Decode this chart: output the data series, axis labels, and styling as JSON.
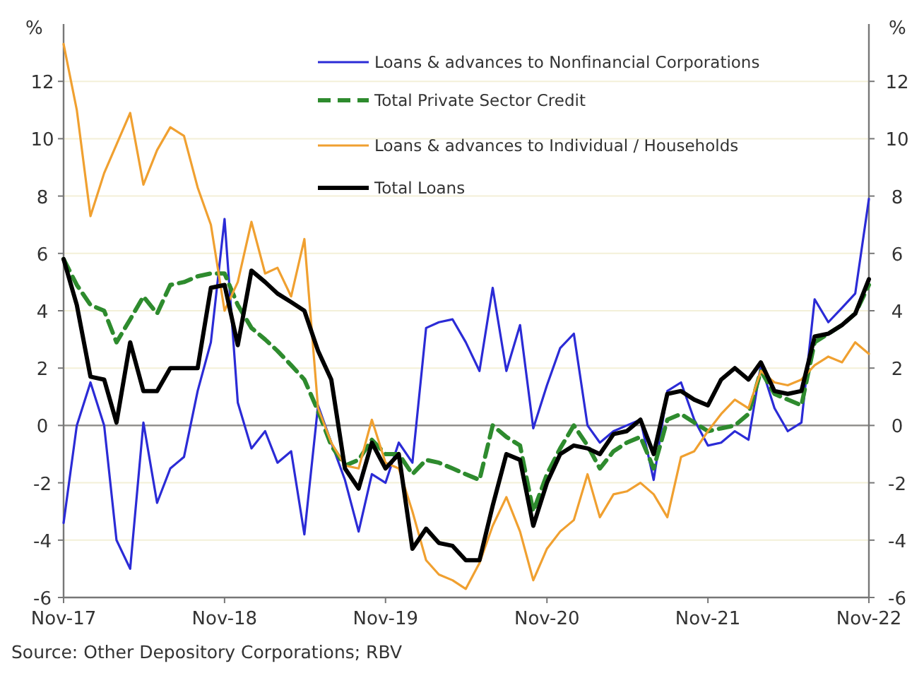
{
  "chart_data": {
    "type": "line",
    "ylabel": "%",
    "y2label": "%",
    "x": [
      "2017-11",
      "2017-12",
      "2018-01",
      "2018-02",
      "2018-03",
      "2018-04",
      "2018-05",
      "2018-06",
      "2018-07",
      "2018-08",
      "2018-09",
      "2018-10",
      "2018-11",
      "2018-12",
      "2019-01",
      "2019-02",
      "2019-03",
      "2019-04",
      "2019-05",
      "2019-06",
      "2019-07",
      "2019-08",
      "2019-09",
      "2019-10",
      "2019-11",
      "2019-12",
      "2020-01",
      "2020-02",
      "2020-03",
      "2020-04",
      "2020-05",
      "2020-06",
      "2020-07",
      "2020-08",
      "2020-09",
      "2020-10",
      "2020-11",
      "2020-12",
      "2021-01",
      "2021-02",
      "2021-03",
      "2021-04",
      "2021-05",
      "2021-06",
      "2021-07",
      "2021-08",
      "2021-09",
      "2021-10",
      "2021-11",
      "2021-12",
      "2022-01",
      "2022-02",
      "2022-03",
      "2022-04",
      "2022-05",
      "2022-06",
      "2022-07",
      "2022-08",
      "2022-09",
      "2022-10",
      "2022-11"
    ],
    "series": [
      {
        "name": "Loans & advances to Nonfinancial Corporations",
        "color": "#2b2bd6",
        "values": [
          -3.4,
          0,
          1.5,
          0,
          -4,
          -5,
          0.1,
          -2.7,
          -1.5,
          -1.1,
          1.2,
          2.9,
          7.2,
          0.8,
          -0.8,
          -0.2,
          -1.3,
          -0.9,
          -3.8,
          0.7,
          -0.6,
          -1.9,
          -3.7,
          -1.7,
          -2,
          -0.6,
          -1.3,
          3.4,
          3.6,
          3.7,
          2.9,
          1.9,
          4.8,
          1.9,
          3.5,
          -0.1,
          1.4,
          2.7,
          3.2,
          0,
          -0.6,
          -0.2,
          0,
          0.2,
          -1.9,
          1.2,
          1.5,
          0.2,
          -0.7,
          -0.6,
          -0.2,
          -0.5,
          2.1,
          0.6,
          -0.2,
          0.1,
          4.4,
          3.6,
          4.1,
          4.6,
          7.9
        ]
      },
      {
        "name": "Total Private Sector Credit",
        "color": "#2e8b2e",
        "line_style": "dashed",
        "values": [
          5.8,
          4.9,
          4.2,
          4,
          2.9,
          3.7,
          4.5,
          3.9,
          4.9,
          5,
          5.2,
          5.3,
          5.3,
          4.2,
          3.4,
          3,
          2.6,
          2.1,
          1.6,
          0.5,
          -0.7,
          -1.4,
          -1.2,
          -0.5,
          -1,
          -1,
          -1.7,
          -1.2,
          -1.3,
          -1.5,
          -1.7,
          -1.9,
          0,
          -0.4,
          -0.7,
          -3,
          -1.7,
          -0.8,
          0,
          -0.7,
          -1.5,
          -0.9,
          -0.6,
          -0.4,
          -1.5,
          0.2,
          0.4,
          0.1,
          -0.2,
          -0.1,
          0,
          0.4,
          1.9,
          1.1,
          0.9,
          0.7,
          2.9,
          3.2,
          3.5,
          3.9,
          4.9
        ]
      },
      {
        "name": "Loans & advances to Individual / Households",
        "color": "#f0a030",
        "values": [
          13.3,
          11,
          7.3,
          8.8,
          9.8,
          10.9,
          8.4,
          9.6,
          10.4,
          10.1,
          8.3,
          7,
          4,
          5,
          7.1,
          5.3,
          5.5,
          4.5,
          6.5,
          0.6,
          -0.6,
          -1.4,
          -1.5,
          0.2,
          -1.3,
          -1.5,
          -3,
          -4.7,
          -5.2,
          -5.4,
          -5.7,
          -4.8,
          -3.5,
          -2.5,
          -3.7,
          -5.4,
          -4.3,
          -3.7,
          -3.3,
          -1.7,
          -3.2,
          -2.4,
          -2.3,
          -2,
          -2.4,
          -3.2,
          -1.1,
          -0.9,
          -0.2,
          0.4,
          0.9,
          0.6,
          1.9,
          1.5,
          1.4,
          1.6,
          2.1,
          2.4,
          2.2,
          2.9,
          2.5
        ]
      },
      {
        "name": "Total Loans",
        "color": "#000000",
        "values": [
          5.8,
          4.2,
          1.7,
          1.6,
          0.1,
          2.9,
          1.2,
          1.2,
          2,
          2,
          2,
          4.8,
          4.9,
          2.8,
          5.4,
          5,
          4.6,
          4.3,
          4,
          2.6,
          1.6,
          -1.5,
          -2.2,
          -0.6,
          -1.5,
          -1,
          -4.3,
          -3.6,
          -4.1,
          -4.2,
          -4.7,
          -4.7,
          -2.8,
          -1,
          -1.2,
          -3.5,
          -2,
          -1,
          -0.7,
          -0.8,
          -1,
          -0.3,
          -0.2,
          0.2,
          -1,
          1.1,
          1.2,
          0.9,
          0.7,
          1.6,
          2,
          1.6,
          2.2,
          1.2,
          1.1,
          1.2,
          3.1,
          3.2,
          3.5,
          3.9,
          5.1
        ]
      }
    ],
    "xlim": [
      "2017-11",
      "2022-11"
    ],
    "xticks": [
      {
        "value": "2017-11",
        "label": "Nov-17"
      },
      {
        "value": "2018-11",
        "label": "Nov-18"
      },
      {
        "value": "2019-11",
        "label": "Nov-19"
      },
      {
        "value": "2020-11",
        "label": "Nov-20"
      },
      {
        "value": "2021-11",
        "label": "Nov-21"
      },
      {
        "value": "2022-11",
        "label": "Nov-22"
      }
    ],
    "ylim": [
      -6,
      14
    ],
    "yticks": [
      -6,
      -4,
      -2,
      0,
      2,
      4,
      6,
      8,
      10,
      12
    ],
    "y2lim": [
      -6,
      14
    ],
    "y2ticks": [
      -6,
      -4,
      -2,
      0,
      2,
      4,
      6,
      8,
      10,
      12
    ],
    "ref_lines": [
      {
        "axis": "y",
        "value": 0,
        "color": "#888888"
      }
    ],
    "grid": "y",
    "legend": "top right",
    "line_style": "solid",
    "annotations": [
      "Source: Other Depository Corporations; RBV"
    ]
  }
}
